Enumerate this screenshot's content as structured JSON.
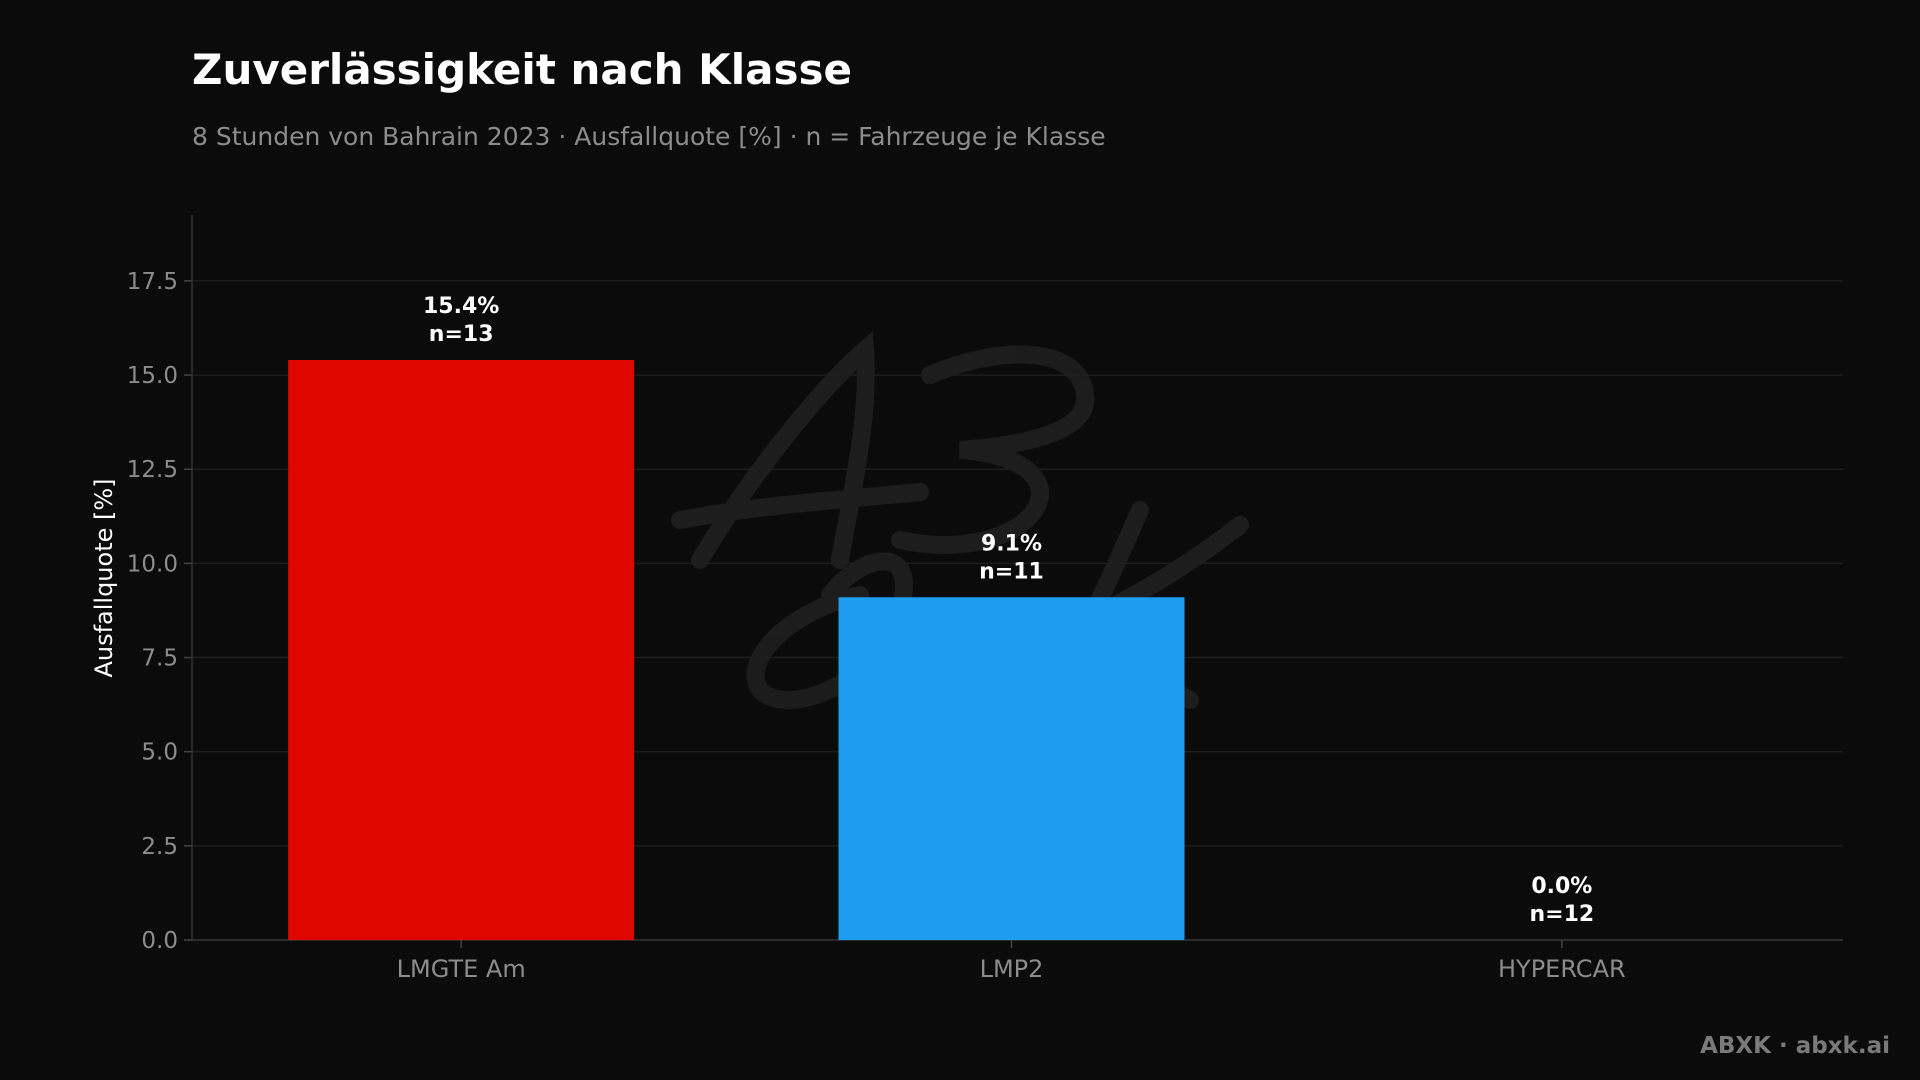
{
  "chart_data": {
    "type": "bar",
    "title": "Zuverlässigkeit nach Klasse",
    "subtitle": "8 Stunden von Bahrain 2023 · Ausfallquote [%] · n = Fahrzeuge je Klasse",
    "xlabel": "",
    "ylabel": "Ausfallquote [%]",
    "categories": [
      "LMGTE Am",
      "LMP2",
      "HYPERCAR"
    ],
    "values": [
      15.4,
      9.1,
      0.0
    ],
    "counts": [
      13,
      11,
      12
    ],
    "value_labels": [
      "15.4%",
      "9.1%",
      "0.0%"
    ],
    "count_labels": [
      "n=13",
      "n=11",
      "n=12"
    ],
    "colors": [
      "#e00700",
      "#1e9cf0",
      "#1e9cf0"
    ],
    "ylim": [
      0,
      19.25
    ],
    "yticks": [
      0,
      2.5,
      5,
      7.5,
      10,
      12.5,
      15,
      17.5
    ],
    "ytick_labels": [
      "0.0",
      "2.5",
      "5.0",
      "7.5",
      "10.0",
      "12.5",
      "15.0",
      "17.5"
    ],
    "grid": true,
    "legend": "none"
  },
  "watermark": {
    "logo_text": "ABXK",
    "footer": "ABXK · abxk.ai"
  },
  "colors": {
    "background": "#0b0b0b",
    "title": "#ffffff",
    "subtitle": "#8c8c8c",
    "axis_text": "#8c8c8c",
    "grid": "#1e1e1e",
    "footer": "#7a7a7a"
  }
}
